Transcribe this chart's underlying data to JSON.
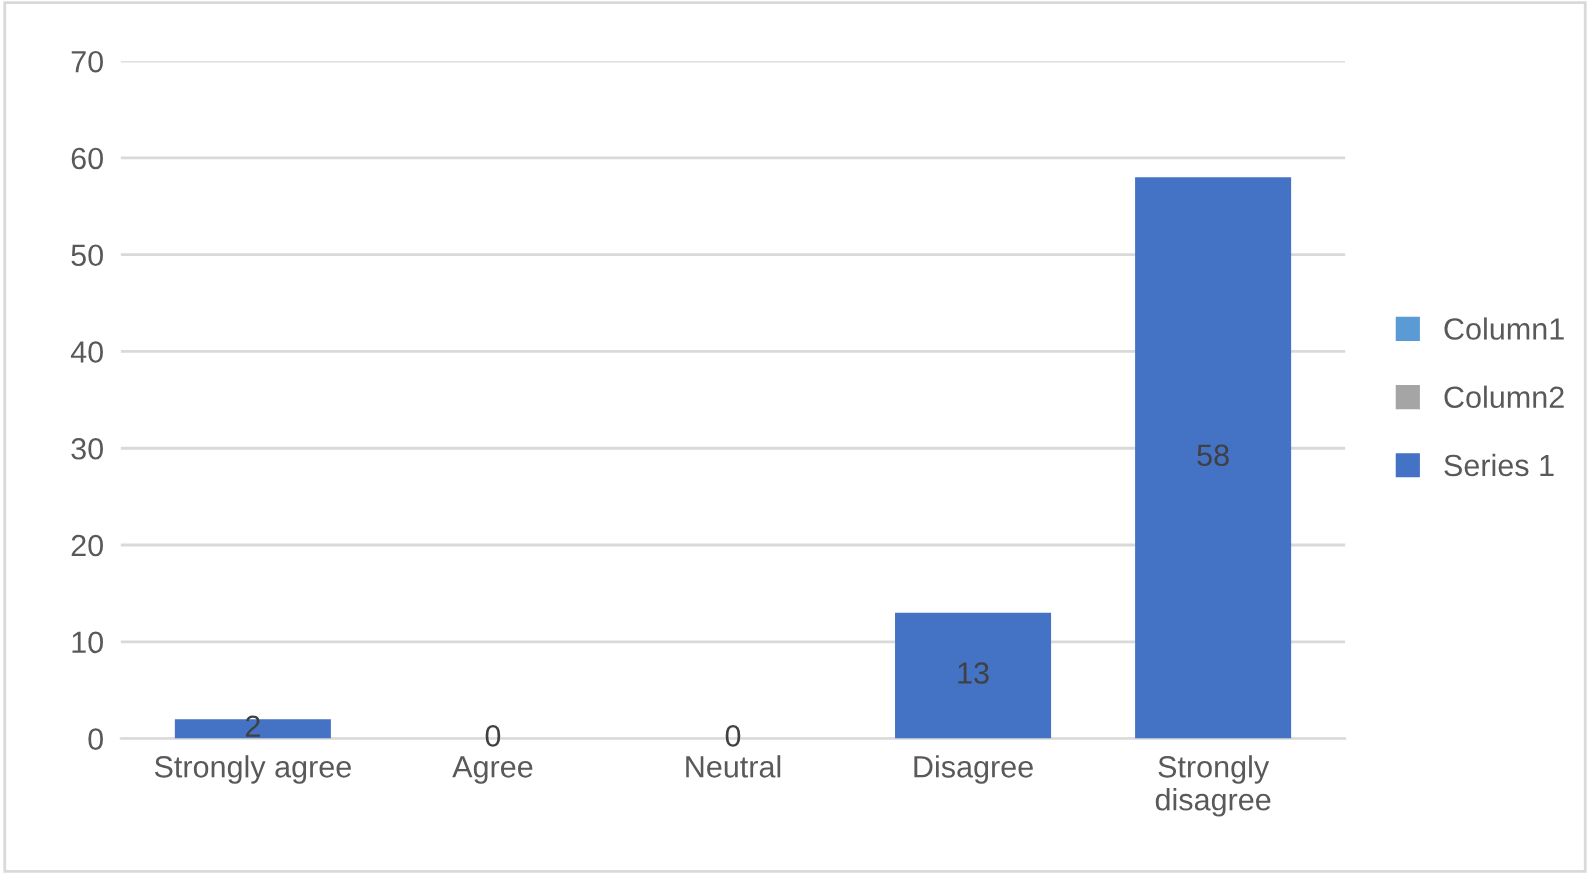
{
  "chart_data": {
    "type": "bar",
    "categories": [
      "Strongly agree",
      "Agree",
      "Neutral",
      "Disagree",
      "Strongly disagree"
    ],
    "series": [
      {
        "name": "Column1",
        "color": "#5b9bd5",
        "values": [
          null,
          null,
          null,
          null,
          null
        ]
      },
      {
        "name": "Column2",
        "color": "#a5a5a5",
        "values": [
          null,
          null,
          null,
          null,
          null
        ]
      },
      {
        "name": "Series 1",
        "color": "#4472c4",
        "values": [
          2,
          0,
          0,
          13,
          58
        ]
      }
    ],
    "ylim": [
      0,
      70
    ],
    "yticks": [
      0,
      10,
      20,
      30,
      40,
      50,
      60,
      70
    ],
    "grid": "y",
    "legend": "right",
    "data_labels": true
  }
}
